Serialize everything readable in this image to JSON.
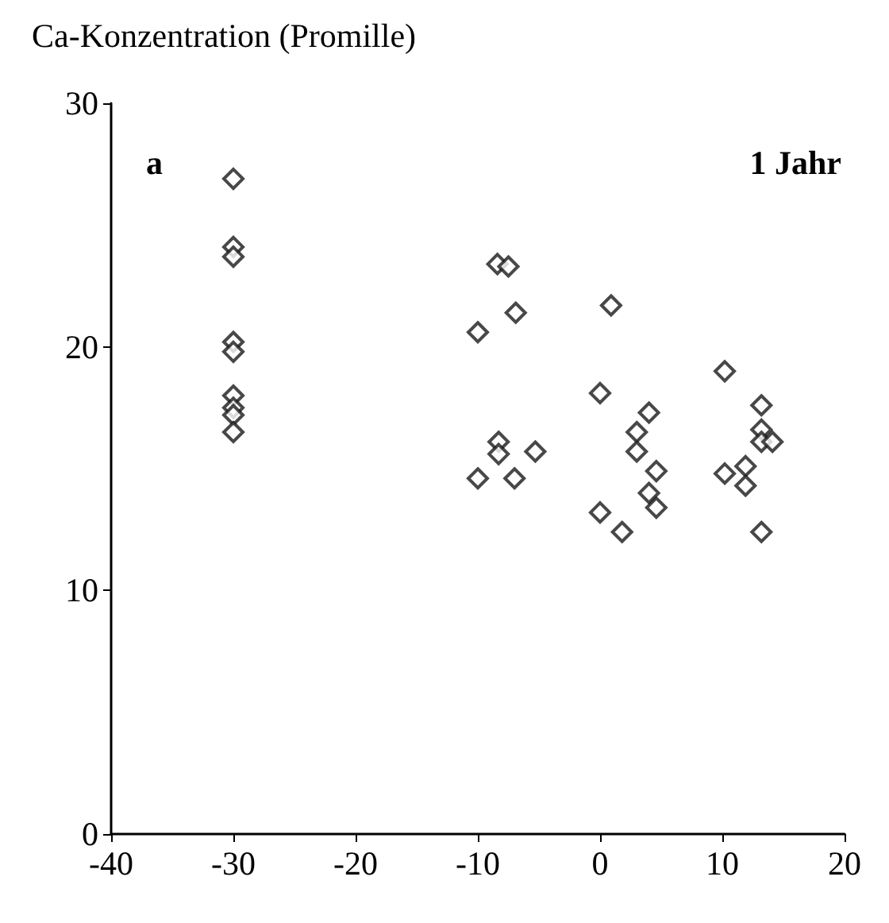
{
  "chart_data": {
    "type": "scatter",
    "ylabel": "Ca-Konzentration (Promille)",
    "annotations": [
      "a",
      "1 Jahr"
    ],
    "x": [
      -30,
      -30,
      -30,
      -30,
      -30,
      -30,
      -30,
      -30,
      -30,
      -10,
      -8.4,
      -7.5,
      -6.9,
      -8.3,
      -8.3,
      -5.3,
      -10,
      -7,
      0.9,
      0,
      0,
      4,
      3,
      3,
      4.6,
      4,
      4.6,
      1.8,
      10.2,
      13.2,
      13.2,
      13.2,
      14.1,
      10.2,
      11.9,
      11.9,
      13.2
    ],
    "values": [
      26.9,
      24.1,
      23.7,
      20.2,
      19.8,
      18,
      17.5,
      17.2,
      16.5,
      20.6,
      23.4,
      23.3,
      21.4,
      16.1,
      15.6,
      15.7,
      14.6,
      14.6,
      21.7,
      18.1,
      13.2,
      17.3,
      16.5,
      15.7,
      14.9,
      14,
      13.4,
      12.4,
      19,
      17.6,
      16.6,
      16.1,
      16.1,
      14.8,
      15.1,
      14.3,
      12.4
    ],
    "color": "#1a1a1a",
    "marker": "diamond",
    "xlim": [
      -40,
      20
    ],
    "xticks": [
      -40,
      -30,
      -20,
      -10,
      0,
      10,
      20
    ],
    "ylim": [
      0,
      30
    ],
    "yticks": [
      0,
      10,
      20,
      30
    ]
  }
}
